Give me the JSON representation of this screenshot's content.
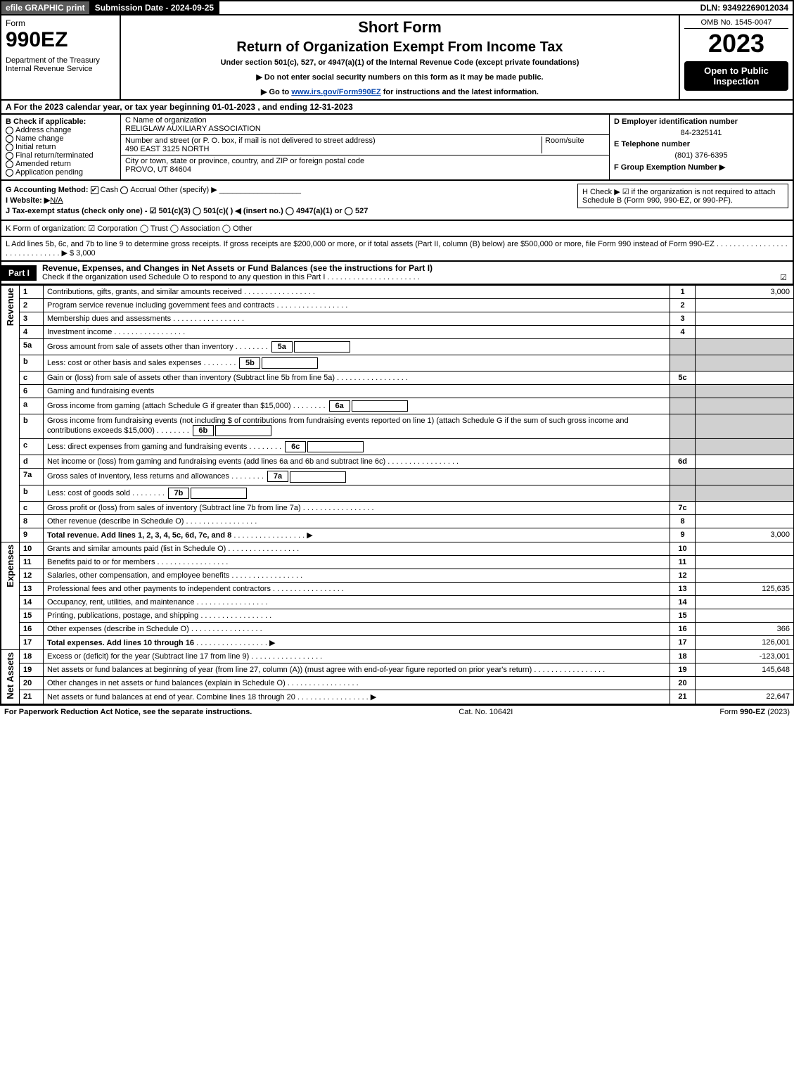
{
  "topbar": {
    "efile": "efile GRAPHIC print",
    "submission": "Submission Date - 2024-09-25",
    "dln": "DLN: 93492269012034"
  },
  "header": {
    "form": "Form",
    "formnum": "990EZ",
    "dept": "Department of the Treasury\nInternal Revenue Service",
    "title1": "Short Form",
    "title2": "Return of Organization Exempt From Income Tax",
    "sub": "Under section 501(c), 527, or 4947(a)(1) of the Internal Revenue Code (except private foundations)",
    "note1": "▶ Do not enter social security numbers on this form as it may be made public.",
    "note2_pre": "▶ Go to ",
    "note2_link": "www.irs.gov/Form990EZ",
    "note2_post": " for instructions and the latest information.",
    "omb": "OMB No. 1545-0047",
    "year": "2023",
    "inspect": "Open to Public Inspection"
  },
  "rowA": "A  For the 2023 calendar year, or tax year beginning 01-01-2023 , and ending 12-31-2023",
  "colB": {
    "title": "B  Check if applicable:",
    "items": [
      "Address change",
      "Name change",
      "Initial return",
      "Final return/terminated",
      "Amended return",
      "Application pending"
    ]
  },
  "colC": {
    "c_label": "C Name of organization",
    "c_name": "RELIGLAW AUXILIARY ASSOCIATION",
    "addr_label": "Number and street (or P. O. box, if mail is not delivered to street address)",
    "room": "Room/suite",
    "addr": "490 EAST 3125 NORTH",
    "city_label": "City or town, state or province, country, and ZIP or foreign postal code",
    "city": "PROVO, UT  84604"
  },
  "colD": {
    "d_label": "D Employer identification number",
    "ein": "84-2325141",
    "e_label": "E Telephone number",
    "phone": "(801) 376-6395",
    "f_label": "F Group Exemption Number  ▶"
  },
  "info": {
    "g": "G Accounting Method:",
    "g_cash": "Cash",
    "g_accrual": "Accrual",
    "g_other": "Other (specify) ▶",
    "h": "H   Check ▶ ☑ if the organization is not required to attach Schedule B (Form 990, 990-EZ, or 990-PF).",
    "i": "I Website: ▶",
    "i_val": "N/A",
    "j": "J Tax-exempt status (check only one) - ☑ 501(c)(3)  ◯ 501(c)(  ) ◀ (insert no.)  ◯ 4947(a)(1) or  ◯ 527",
    "k": "K Form of organization:  ☑ Corporation   ◯ Trust   ◯ Association   ◯ Other",
    "l": "L Add lines 5b, 6c, and 7b to line 9 to determine gross receipts. If gross receipts are $200,000 or more, or if total assets (Part II, column (B) below) are $500,000 or more, file Form 990 instead of Form 990-EZ  . . . . . . . . . . . . . . . . . . . . . . . . . . . . . .  ▶ $ 3,000"
  },
  "part1": {
    "label": "Part I",
    "title": "Revenue, Expenses, and Changes in Net Assets or Fund Balances (see the instructions for Part I)",
    "sub": "Check if the organization used Schedule O to respond to any question in this Part I . . . . . . . . . . . . . . . . . . . . . .",
    "checked": "☑"
  },
  "sections": {
    "revenue": "Revenue",
    "expenses": "Expenses",
    "netassets": "Net Assets"
  },
  "lines": [
    {
      "n": "1",
      "t": "Contributions, gifts, grants, and similar amounts received",
      "ln": "1",
      "amt": "3,000"
    },
    {
      "n": "2",
      "t": "Program service revenue including government fees and contracts",
      "ln": "2",
      "amt": ""
    },
    {
      "n": "3",
      "t": "Membership dues and assessments",
      "ln": "3",
      "amt": ""
    },
    {
      "n": "4",
      "t": "Investment income",
      "ln": "4",
      "amt": ""
    },
    {
      "n": "5a",
      "t": "Gross amount from sale of assets other than inventory",
      "sub": "5a"
    },
    {
      "n": "b",
      "t": "Less: cost or other basis and sales expenses",
      "sub": "5b"
    },
    {
      "n": "c",
      "t": "Gain or (loss) from sale of assets other than inventory (Subtract line 5b from line 5a)",
      "ln": "5c",
      "amt": ""
    },
    {
      "n": "6",
      "t": "Gaming and fundraising events"
    },
    {
      "n": "a",
      "t": "Gross income from gaming (attach Schedule G if greater than $15,000)",
      "sub": "6a"
    },
    {
      "n": "b",
      "t": "Gross income from fundraising events (not including $                   of contributions from fundraising events reported on line 1) (attach Schedule G if the sum of such gross income and contributions exceeds $15,000)",
      "sub": "6b"
    },
    {
      "n": "c",
      "t": "Less: direct expenses from gaming and fundraising events",
      "sub": "6c"
    },
    {
      "n": "d",
      "t": "Net income or (loss) from gaming and fundraising events (add lines 6a and 6b and subtract line 6c)",
      "ln": "6d",
      "amt": ""
    },
    {
      "n": "7a",
      "t": "Gross sales of inventory, less returns and allowances",
      "sub": "7a"
    },
    {
      "n": "b",
      "t": "Less: cost of goods sold",
      "sub": "7b"
    },
    {
      "n": "c",
      "t": "Gross profit or (loss) from sales of inventory (Subtract line 7b from line 7a)",
      "ln": "7c",
      "amt": ""
    },
    {
      "n": "8",
      "t": "Other revenue (describe in Schedule O)",
      "ln": "8",
      "amt": ""
    },
    {
      "n": "9",
      "t": "Total revenue. Add lines 1, 2, 3, 4, 5c, 6d, 7c, and 8",
      "ln": "9",
      "amt": "3,000",
      "arrow": "▶",
      "bold": true
    }
  ],
  "expenses": [
    {
      "n": "10",
      "t": "Grants and similar amounts paid (list in Schedule O)",
      "ln": "10",
      "amt": ""
    },
    {
      "n": "11",
      "t": "Benefits paid to or for members",
      "ln": "11",
      "amt": ""
    },
    {
      "n": "12",
      "t": "Salaries, other compensation, and employee benefits",
      "ln": "12",
      "amt": ""
    },
    {
      "n": "13",
      "t": "Professional fees and other payments to independent contractors",
      "ln": "13",
      "amt": "125,635"
    },
    {
      "n": "14",
      "t": "Occupancy, rent, utilities, and maintenance",
      "ln": "14",
      "amt": ""
    },
    {
      "n": "15",
      "t": "Printing, publications, postage, and shipping",
      "ln": "15",
      "amt": ""
    },
    {
      "n": "16",
      "t": "Other expenses (describe in Schedule O)",
      "ln": "16",
      "amt": "366"
    },
    {
      "n": "17",
      "t": "Total expenses. Add lines 10 through 16",
      "ln": "17",
      "amt": "126,001",
      "arrow": "▶",
      "bold": true
    }
  ],
  "netassets": [
    {
      "n": "18",
      "t": "Excess or (deficit) for the year (Subtract line 17 from line 9)",
      "ln": "18",
      "amt": "-123,001"
    },
    {
      "n": "19",
      "t": "Net assets or fund balances at beginning of year (from line 27, column (A)) (must agree with end-of-year figure reported on prior year's return)",
      "ln": "19",
      "amt": "145,648"
    },
    {
      "n": "20",
      "t": "Other changes in net assets or fund balances (explain in Schedule O)",
      "ln": "20",
      "amt": ""
    },
    {
      "n": "21",
      "t": "Net assets or fund balances at end of year. Combine lines 18 through 20",
      "ln": "21",
      "amt": "22,647",
      "arrow": "▶"
    }
  ],
  "footer": {
    "left": "For Paperwork Reduction Act Notice, see the separate instructions.",
    "mid": "Cat. No. 10642I",
    "right": "Form 990-EZ (2023)"
  }
}
